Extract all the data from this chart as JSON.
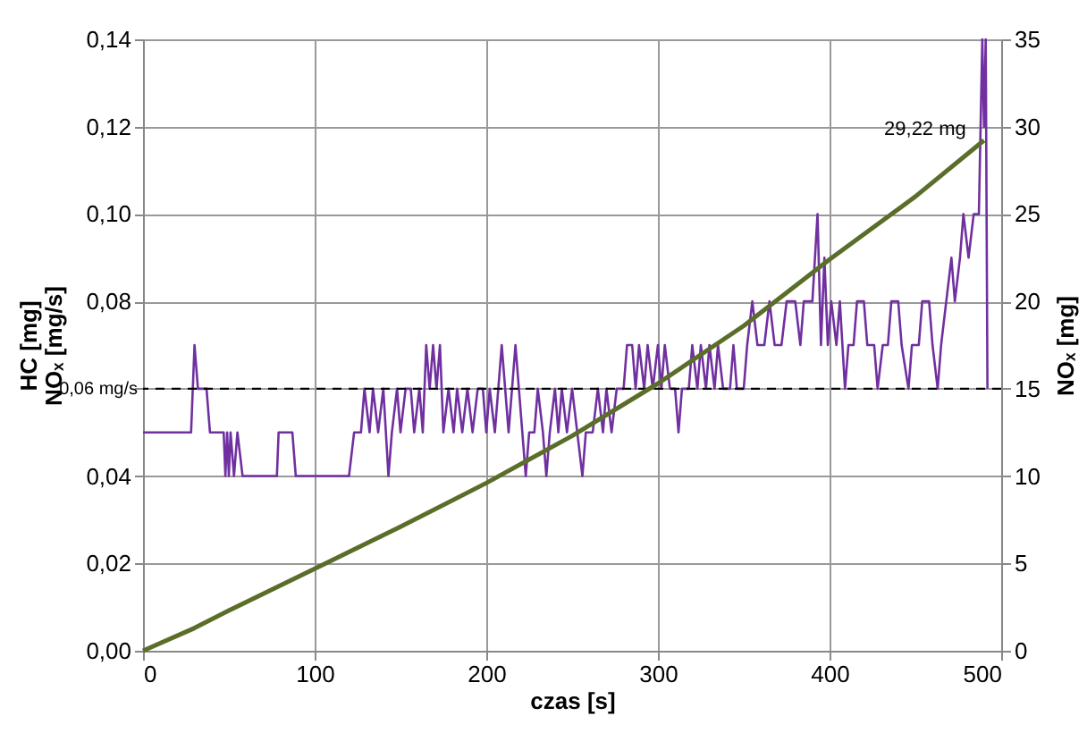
{
  "chart_data": {
    "type": "line",
    "xlabel": "czas [s]",
    "ylabel": "HC [mg]\nNOₓ [mg/s]",
    "y2label": "NOₓ [mg]",
    "xlim": [
      0,
      500
    ],
    "xticks": [
      0,
      100,
      200,
      300,
      400,
      500
    ],
    "ylim": [
      0,
      0.14
    ],
    "yticks": [
      {
        "value": 0,
        "label": "0,00"
      },
      {
        "value": 0.02,
        "label": "0,02"
      },
      {
        "value": 0.04,
        "label": "0,04"
      },
      {
        "value": 0.06,
        "label": null
      },
      {
        "value": 0.08,
        "label": "0,08"
      },
      {
        "value": 0.1,
        "label": "0,10"
      },
      {
        "value": 0.12,
        "label": "0,12"
      },
      {
        "value": 0.14,
        "label": "0,14"
      }
    ],
    "y2lim": [
      0,
      35
    ],
    "y2ticks": [
      0,
      5,
      10,
      15,
      20,
      25,
      30,
      35
    ],
    "grid": true,
    "marker": "none",
    "line_style": "solid",
    "ref_lines": [
      {
        "axis": "y",
        "value": 0.06,
        "label": "0,06 mg/s",
        "color": "#000000",
        "line_style": "dashed"
      }
    ],
    "annotations": [
      "29,22 mg"
    ],
    "series": [
      {
        "color": "#7030a0",
        "axis": "y",
        "x": [
          0,
          28,
          30,
          32,
          37,
          39,
          47,
          48,
          49,
          50,
          51,
          53,
          55,
          58,
          78,
          79,
          87,
          89,
          120,
          123,
          127,
          129,
          132,
          134,
          137,
          140,
          143,
          145,
          148,
          150,
          153,
          156,
          158,
          161,
          163,
          165,
          167,
          169,
          171,
          173,
          175,
          178,
          181,
          183,
          186,
          189,
          192,
          195,
          198,
          200,
          202,
          205,
          207,
          209,
          211,
          213,
          215,
          217,
          219,
          221,
          223,
          225,
          228,
          230,
          233,
          235,
          237,
          240,
          242,
          244,
          247,
          250,
          253,
          256,
          258,
          262,
          265,
          268,
          270,
          273,
          276,
          280,
          282,
          285,
          287,
          289,
          292,
          294,
          297,
          300,
          302,
          304,
          307,
          310,
          312,
          314,
          318,
          320,
          323,
          325,
          328,
          330,
          333,
          335,
          338,
          342,
          344,
          346,
          350,
          352,
          355,
          358,
          362,
          365,
          368,
          372,
          375,
          380,
          383,
          385,
          390,
          393,
          395,
          397,
          399,
          401,
          404,
          406,
          409,
          411,
          414,
          416,
          420,
          422,
          426,
          428,
          431,
          434,
          436,
          440,
          442,
          446,
          448,
          452,
          454,
          458,
          460,
          463,
          465,
          468,
          471,
          473,
          476,
          478,
          481,
          484,
          487,
          489,
          490,
          491,
          492
        ],
        "values": [
          0.05,
          0.05,
          0.07,
          0.06,
          0.06,
          0.05,
          0.05,
          0.04,
          0.05,
          0.04,
          0.05,
          0.04,
          0.05,
          0.04,
          0.04,
          0.05,
          0.05,
          0.04,
          0.04,
          0.05,
          0.05,
          0.06,
          0.05,
          0.06,
          0.05,
          0.06,
          0.04,
          0.05,
          0.06,
          0.05,
          0.06,
          0.06,
          0.05,
          0.06,
          0.05,
          0.07,
          0.06,
          0.07,
          0.06,
          0.07,
          0.05,
          0.06,
          0.05,
          0.06,
          0.05,
          0.06,
          0.05,
          0.06,
          0.06,
          0.05,
          0.06,
          0.05,
          0.06,
          0.07,
          0.06,
          0.05,
          0.06,
          0.07,
          0.06,
          0.05,
          0.04,
          0.05,
          0.05,
          0.06,
          0.05,
          0.04,
          0.05,
          0.06,
          0.05,
          0.06,
          0.05,
          0.06,
          0.05,
          0.04,
          0.05,
          0.05,
          0.06,
          0.05,
          0.06,
          0.05,
          0.06,
          0.06,
          0.07,
          0.07,
          0.06,
          0.07,
          0.06,
          0.07,
          0.06,
          0.07,
          0.06,
          0.07,
          0.06,
          0.06,
          0.05,
          0.06,
          0.06,
          0.07,
          0.06,
          0.07,
          0.06,
          0.07,
          0.06,
          0.07,
          0.06,
          0.06,
          0.07,
          0.06,
          0.06,
          0.07,
          0.08,
          0.07,
          0.07,
          0.08,
          0.07,
          0.07,
          0.08,
          0.08,
          0.07,
          0.08,
          0.08,
          0.1,
          0.07,
          0.09,
          0.07,
          0.08,
          0.07,
          0.08,
          0.06,
          0.07,
          0.07,
          0.08,
          0.08,
          0.07,
          0.07,
          0.06,
          0.07,
          0.07,
          0.08,
          0.08,
          0.07,
          0.06,
          0.07,
          0.07,
          0.08,
          0.08,
          0.07,
          0.06,
          0.07,
          0.08,
          0.09,
          0.08,
          0.09,
          0.1,
          0.09,
          0.1,
          0.1,
          0.14,
          0.12,
          0.14,
          0.06
        ]
      },
      {
        "color": "#5a6e2a",
        "axis": "y2",
        "x": [
          0,
          30,
          50,
          100,
          150,
          200,
          250,
          300,
          350,
          400,
          450,
          490
        ],
        "values": [
          0,
          1.3,
          2.3,
          4.7,
          7.1,
          9.6,
          12.3,
          15.3,
          18.6,
          22.4,
          26,
          29.22
        ]
      }
    ]
  }
}
